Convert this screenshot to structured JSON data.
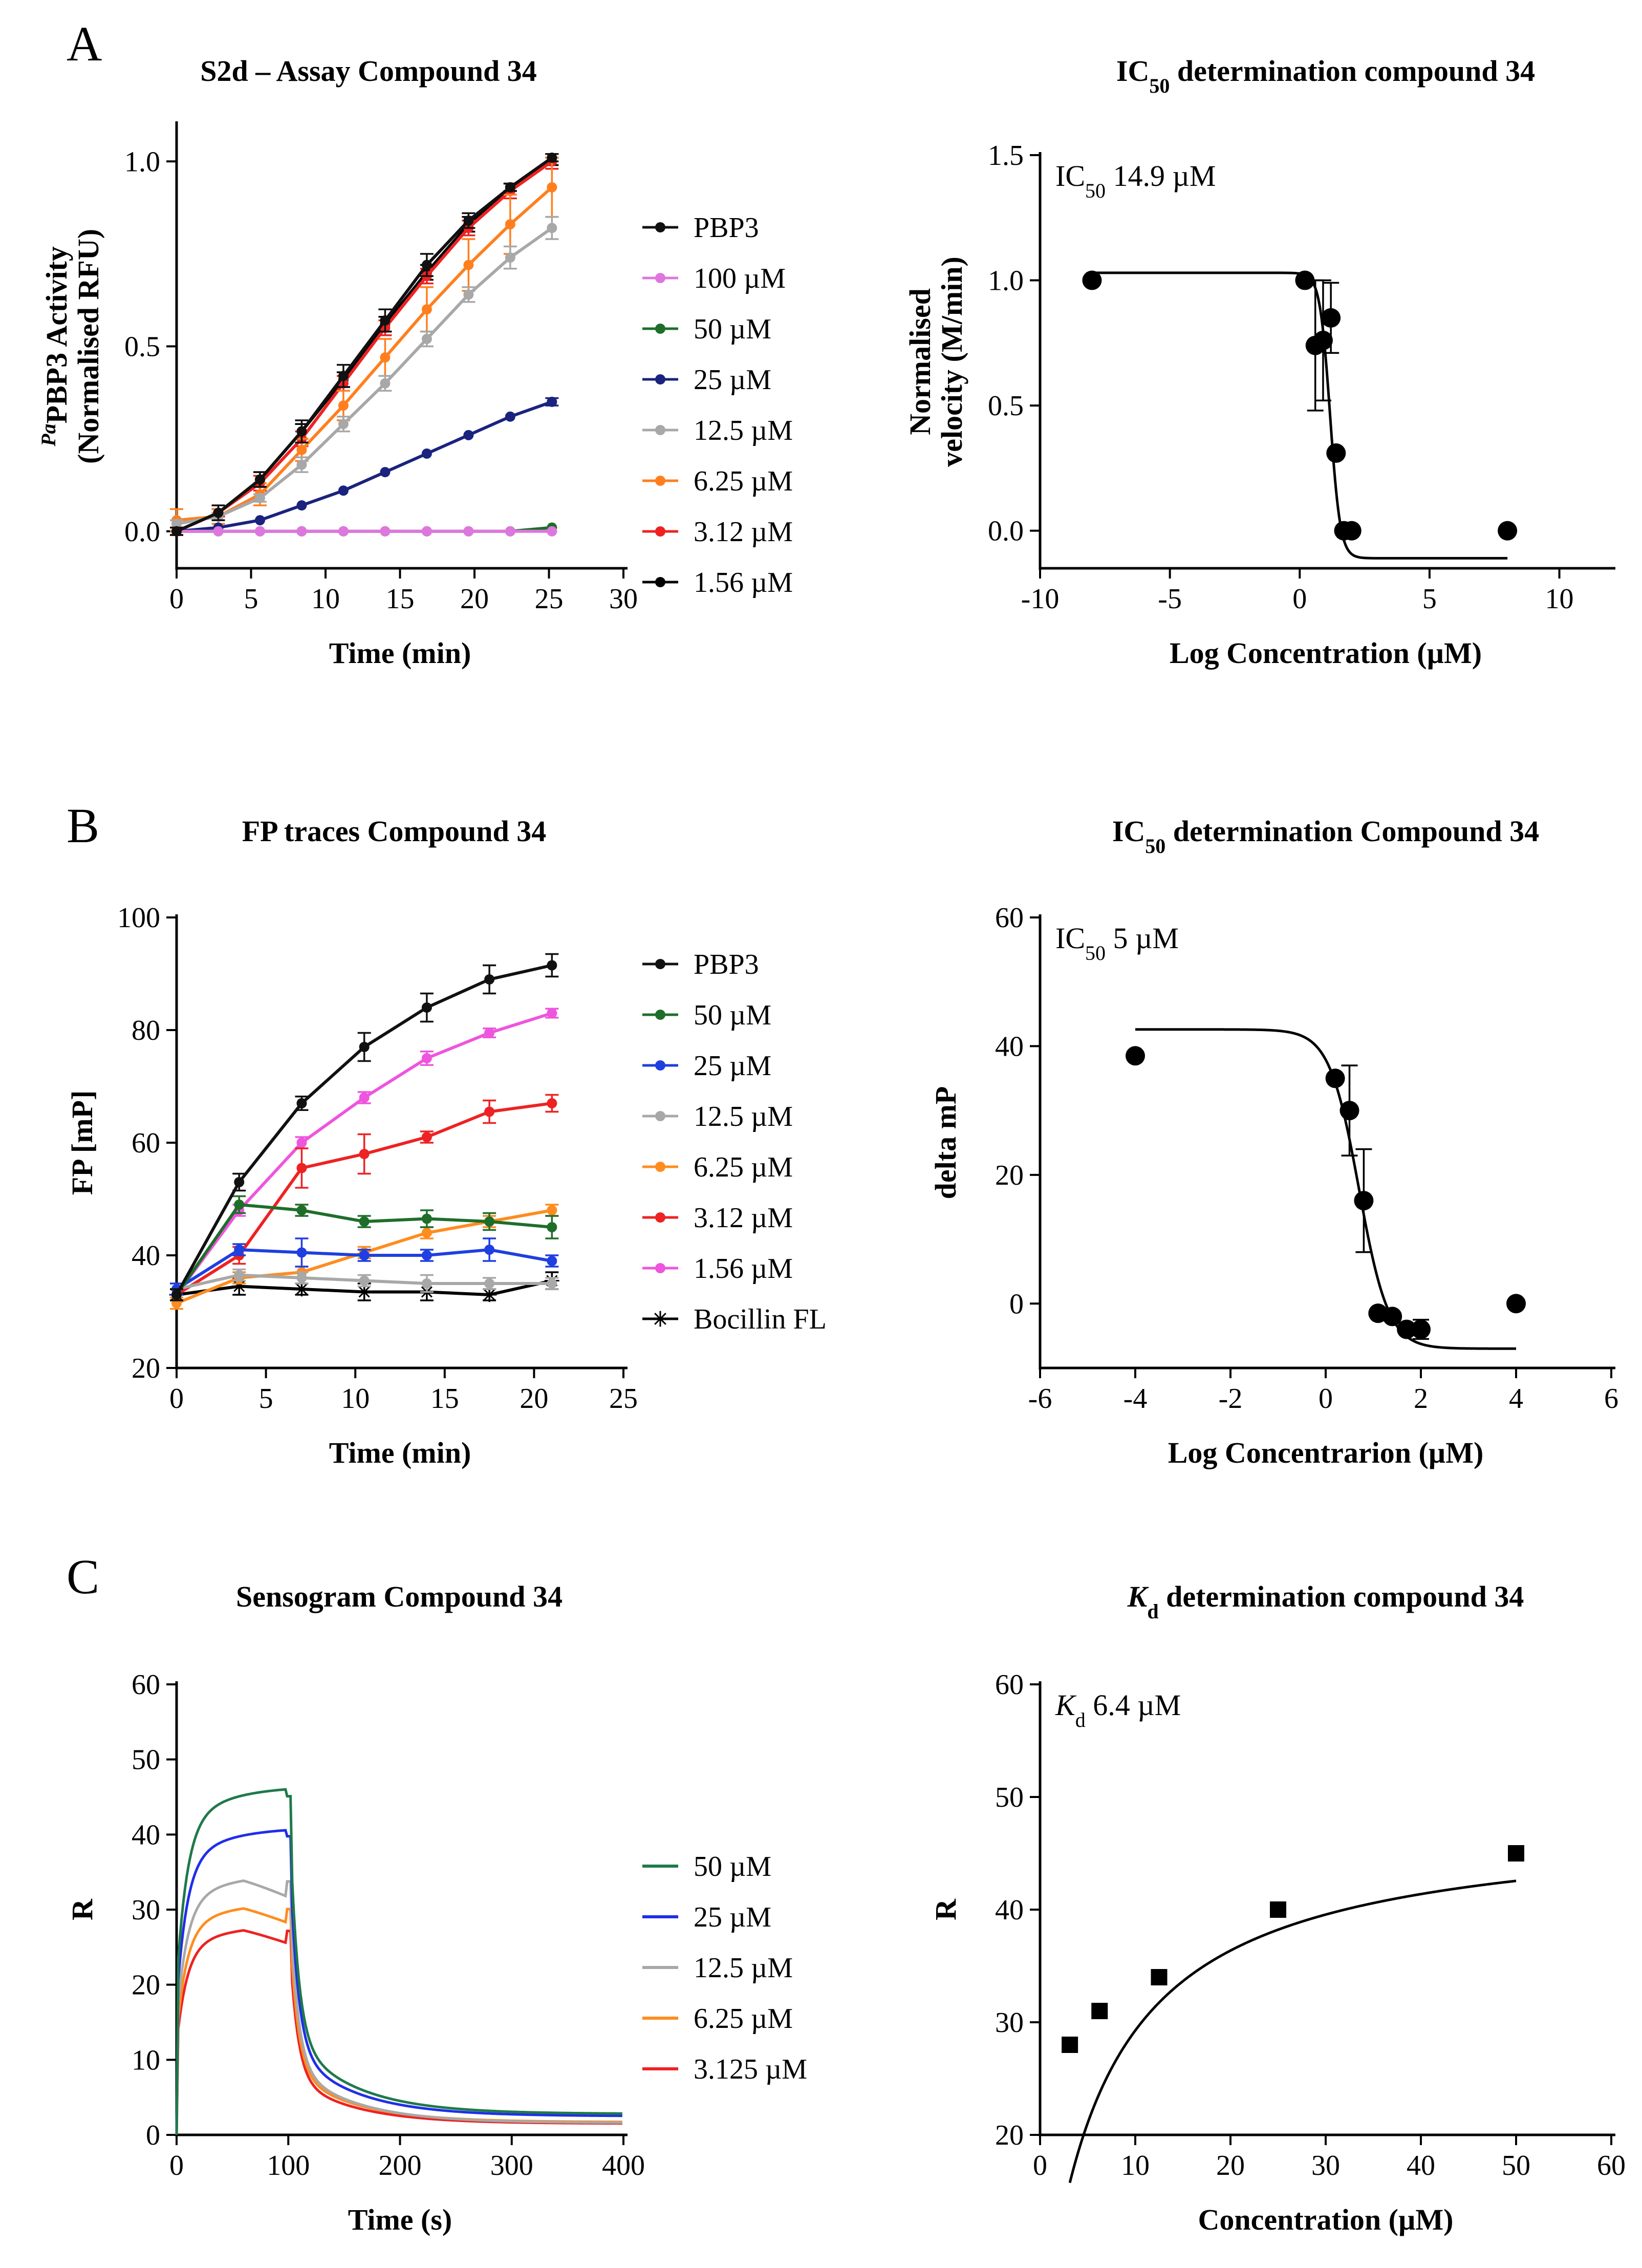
{
  "figure": {
    "panel_letters": [
      "A",
      "B",
      "C"
    ]
  },
  "chart_data": [
    {
      "id": "A1",
      "type": "line",
      "title": "S2d – Assay Compound 34",
      "xlabel": "Time (min)",
      "ylabel_line1": "PaPBP3 Activity",
      "ylabel_line2": "(Normalised RFU)",
      "xlim": [
        0,
        30
      ],
      "ylim": [
        -0.1,
        1.1
      ],
      "xticks": [
        0,
        5,
        10,
        15,
        20,
        25,
        30
      ],
      "yticks": [
        0.0,
        0.5,
        1.0
      ],
      "ytick_labels": [
        "0.0",
        "0.5",
        "1.0"
      ],
      "x": [
        0,
        2.8,
        5.6,
        8.4,
        11.2,
        14.0,
        16.8,
        19.6,
        22.4,
        25.2
      ],
      "series": [
        {
          "name": "PBP3",
          "color": "#111111",
          "values": [
            0.0,
            0.05,
            0.14,
            0.27,
            0.42,
            0.57,
            0.72,
            0.84,
            0.93,
            1.01
          ],
          "err": [
            0.01,
            0.02,
            0.02,
            0.03,
            0.03,
            0.03,
            0.03,
            0.02,
            0.01,
            0.01
          ]
        },
        {
          "name": "100 µM",
          "color": "#dd77dd",
          "values": [
            0.0,
            0.0,
            0.0,
            0.0,
            0.0,
            0.0,
            0.0,
            0.0,
            0.0,
            0.0
          ],
          "err": [
            0.003,
            0.003,
            0.003,
            0.003,
            0.003,
            0.003,
            0.003,
            0.003,
            0.003,
            0.003
          ]
        },
        {
          "name": "50 µM",
          "color": "#1e6e2a",
          "values": [
            0.0,
            0.0,
            0.0,
            0.0,
            0.0,
            0.0,
            0.0,
            0.0,
            0.0,
            0.01
          ],
          "err": [
            0.003,
            0.003,
            0.003,
            0.003,
            0.003,
            0.003,
            0.003,
            0.003,
            0.003,
            0.003
          ]
        },
        {
          "name": "25 µM",
          "color": "#1a237e",
          "values": [
            0.0,
            0.01,
            0.03,
            0.07,
            0.11,
            0.16,
            0.21,
            0.26,
            0.31,
            0.35
          ],
          "err": [
            0.005,
            0.005,
            0.005,
            0.005,
            0.005,
            0.005,
            0.005,
            0.005,
            0.008,
            0.01
          ]
        },
        {
          "name": "12.5 µM",
          "color": "#a8a8a8",
          "values": [
            0.02,
            0.04,
            0.09,
            0.18,
            0.29,
            0.4,
            0.52,
            0.64,
            0.74,
            0.82
          ],
          "err": [
            0.01,
            0.01,
            0.01,
            0.02,
            0.02,
            0.02,
            0.02,
            0.02,
            0.03,
            0.03
          ]
        },
        {
          "name": "6.25 µM",
          "color": "#ff7f1e",
          "values": [
            0.03,
            0.04,
            0.1,
            0.22,
            0.34,
            0.47,
            0.6,
            0.72,
            0.83,
            0.93
          ],
          "err": [
            0.03,
            0.02,
            0.03,
            0.03,
            0.04,
            0.05,
            0.06,
            0.07,
            0.08,
            0.08
          ]
        },
        {
          "name": "3.12 µM",
          "color": "#ee2222",
          "values": [
            0.0,
            0.05,
            0.13,
            0.25,
            0.4,
            0.55,
            0.69,
            0.82,
            0.92,
            1.0
          ],
          "err": [
            0.01,
            0.01,
            0.02,
            0.02,
            0.02,
            0.02,
            0.02,
            0.02,
            0.02,
            0.02
          ]
        },
        {
          "name": "1.56 µM",
          "color": "#000000",
          "values": [
            0.0,
            0.05,
            0.14,
            0.27,
            0.41,
            0.56,
            0.7,
            0.83,
            0.93,
            1.0
          ],
          "err": [
            0.01,
            0.01,
            0.02,
            0.02,
            0.02,
            0.02,
            0.02,
            0.02,
            0.01,
            0.01
          ]
        }
      ]
    },
    {
      "id": "A2",
      "type": "scatter",
      "title": "IC50 determination compound 34",
      "annotation": "IC50 14.9 µM",
      "xlabel": "Log Concentration (µM)",
      "ylabel_line1": "Normalised",
      "ylabel_line2": "velocity (M/min)",
      "xlim": [
        -10,
        12
      ],
      "ylim": [
        -0.15,
        1.5
      ],
      "xticks": [
        -10,
        -5,
        0,
        5,
        10
      ],
      "yticks": [
        0.0,
        0.5,
        1.0,
        1.5
      ],
      "ytick_labels": [
        "0.0",
        "0.5",
        "1.0",
        "1.5"
      ],
      "points": [
        {
          "x": -8,
          "y": 1.0,
          "err": 0
        },
        {
          "x": 0.2,
          "y": 1.0,
          "err": 0
        },
        {
          "x": 0.6,
          "y": 0.74,
          "err": 0.26
        },
        {
          "x": 0.9,
          "y": 0.76,
          "err": 0.24
        },
        {
          "x": 1.2,
          "y": 0.85,
          "err": 0.14
        },
        {
          "x": 1.4,
          "y": 0.31,
          "err": 0
        },
        {
          "x": 1.7,
          "y": 0.0,
          "err": 0
        },
        {
          "x": 2.0,
          "y": 0.0,
          "err": 0
        },
        {
          "x": 8,
          "y": 0.0,
          "err": 0
        }
      ],
      "fit": {
        "top": 1.03,
        "bottom": -0.11,
        "logIC50": 1.17,
        "hill": -2.2,
        "xrange": [
          -8,
          8
        ]
      }
    },
    {
      "id": "B1",
      "type": "line",
      "title": "FP traces Compound 34",
      "xlabel": "Time (min)",
      "ylabel_line1": "FP [mP]",
      "ylabel_line2": "",
      "xlim": [
        0,
        25
      ],
      "ylim": [
        20,
        100
      ],
      "xticks": [
        0,
        5,
        10,
        15,
        20,
        25
      ],
      "yticks": [
        20,
        40,
        60,
        80,
        100
      ],
      "ytick_labels": [
        "20",
        "40",
        "60",
        "80",
        "100"
      ],
      "x": [
        0,
        3.5,
        7,
        10.5,
        14,
        17.5,
        21
      ],
      "series": [
        {
          "name": "PBP3",
          "color": "#111111",
          "values": [
            33,
            53,
            67,
            77,
            84,
            89,
            91.5
          ],
          "err": [
            1,
            1.5,
            1.2,
            2.5,
            2.5,
            2.5,
            2
          ]
        },
        {
          "name": "50 µM",
          "color": "#1e6e2a",
          "values": [
            33,
            49,
            48,
            46,
            46.5,
            46,
            45
          ],
          "err": [
            1,
            1.5,
            1,
            1,
            1.5,
            1.5,
            2
          ]
        },
        {
          "name": "25 µM",
          "color": "#1f3fe0",
          "values": [
            34,
            41,
            40.5,
            40,
            40,
            41,
            39
          ],
          "err": [
            1,
            1,
            2.5,
            1,
            1,
            2,
            1
          ]
        },
        {
          "name": "12.5 µM",
          "color": "#a8a8a8",
          "values": [
            34,
            36.5,
            36,
            35.5,
            35,
            35,
            35
          ],
          "err": [
            1,
            1,
            1,
            1,
            1.5,
            1,
            1
          ]
        },
        {
          "name": "6.25 µM",
          "color": "#ff8c1e",
          "values": [
            31.5,
            36,
            37,
            40.5,
            44,
            46,
            48
          ],
          "err": [
            1,
            1,
            1,
            1,
            1,
            1,
            1
          ]
        },
        {
          "name": "3.12 µM",
          "color": "#ee2222",
          "values": [
            33,
            40,
            55.5,
            58,
            61,
            65.5,
            67
          ],
          "err": [
            1,
            1.5,
            3.5,
            3.5,
            1,
            2,
            1.5
          ]
        },
        {
          "name": "1.56 µM",
          "color": "#ee55dd",
          "values": [
            33,
            48,
            60,
            68,
            75,
            79.5,
            83
          ],
          "err": [
            1,
            1,
            1,
            1,
            1.2,
            0.8,
            0.8
          ]
        },
        {
          "name": "Bocillin FL",
          "color": "#000000",
          "marker": "star",
          "values": [
            33,
            34.5,
            34,
            33.5,
            33.5,
            33,
            35.5
          ],
          "err": [
            1,
            1.5,
            1,
            1.5,
            1.5,
            1,
            1.5
          ]
        }
      ]
    },
    {
      "id": "B2",
      "type": "scatter",
      "title": "IC50 determination Compound 34",
      "annotation": "IC50 5 µM",
      "xlabel": "Log Concentrarion (µM)",
      "ylabel_line1": "delta mP",
      "ylabel_line2": "",
      "xlim": [
        -6,
        6
      ],
      "ylim": [
        -10,
        60
      ],
      "xticks": [
        -6,
        -4,
        -2,
        0,
        2,
        4,
        6
      ],
      "yticks": [
        0,
        20,
        40,
        60
      ],
      "ytick_labels": [
        "0",
        "20",
        "40",
        "60"
      ],
      "points": [
        {
          "x": -4,
          "y": 38.5,
          "err": 0
        },
        {
          "x": 0.2,
          "y": 35,
          "err": 0
        },
        {
          "x": 0.5,
          "y": 30,
          "err": 7
        },
        {
          "x": 0.8,
          "y": 16,
          "err": 8
        },
        {
          "x": 1.1,
          "y": -1.5,
          "err": 0
        },
        {
          "x": 1.4,
          "y": -2,
          "err": 0
        },
        {
          "x": 1.7,
          "y": -4,
          "err": 0
        },
        {
          "x": 2.0,
          "y": -4,
          "err": 1.5
        },
        {
          "x": 4,
          "y": 0,
          "err": 0
        }
      ],
      "fit": {
        "top": 42.6,
        "bottom": -7.0,
        "logIC50": 0.7,
        "hill": -1.4,
        "xrange": [
          -4,
          4
        ]
      }
    },
    {
      "id": "C1",
      "type": "line",
      "title": "Sensogram Compound 34",
      "xlabel": "Time (s)",
      "ylabel_line1": "R",
      "ylabel_line2": "",
      "xlim": [
        0,
        400
      ],
      "ylim": [
        0,
        60
      ],
      "xticks": [
        0,
        100,
        200,
        300,
        400
      ],
      "yticks": [
        0,
        10,
        20,
        30,
        40,
        50,
        60
      ],
      "ytick_labels": [
        "0",
        "10",
        "20",
        "30",
        "40",
        "50",
        "60"
      ],
      "series": [
        {
          "name": "50 µM",
          "color": "#1e7a4a",
          "plateau": 46.5,
          "tail": 2.8
        },
        {
          "name": "25 µM",
          "color": "#1f2fe8",
          "plateau": 41.0,
          "tail": 2.5
        },
        {
          "name": "12.5 µM",
          "color": "#a8a8a8",
          "plateau": 34.8,
          "tail": 1.6
        },
        {
          "name": "6.25 µM",
          "color": "#ff8c1e",
          "plateau": 31.0,
          "tail": 1.7
        },
        {
          "name": "3.125 µM",
          "color": "#ee2222",
          "plateau": 28.0,
          "tail": 1.5
        }
      ]
    },
    {
      "id": "C2",
      "type": "scatter",
      "title": "Kd determination compound 34",
      "annotation": "Kd 6.4 µM",
      "xlabel": "Concentration (µM)",
      "ylabel_line1": "R",
      "ylabel_line2": "",
      "xlim": [
        0,
        60
      ],
      "ylim": [
        20,
        60
      ],
      "xticks": [
        0,
        10,
        20,
        30,
        40,
        50,
        60
      ],
      "yticks": [
        20,
        30,
        40,
        50,
        60
      ],
      "ytick_labels": [
        "20",
        "30",
        "40",
        "50",
        "60"
      ],
      "marker": "square",
      "points": [
        {
          "x": 3.125,
          "y": 28,
          "err": 0
        },
        {
          "x": 6.25,
          "y": 31,
          "err": 0
        },
        {
          "x": 12.5,
          "y": 34,
          "err": 0
        },
        {
          "x": 25,
          "y": 40,
          "err": 0
        },
        {
          "x": 50,
          "y": 45,
          "err": 0
        }
      ],
      "fit": {
        "kind": "binding",
        "bmax": 48.0,
        "kd": 6.4,
        "base": 0,
        "xrange": [
          3.125,
          50
        ]
      }
    }
  ]
}
